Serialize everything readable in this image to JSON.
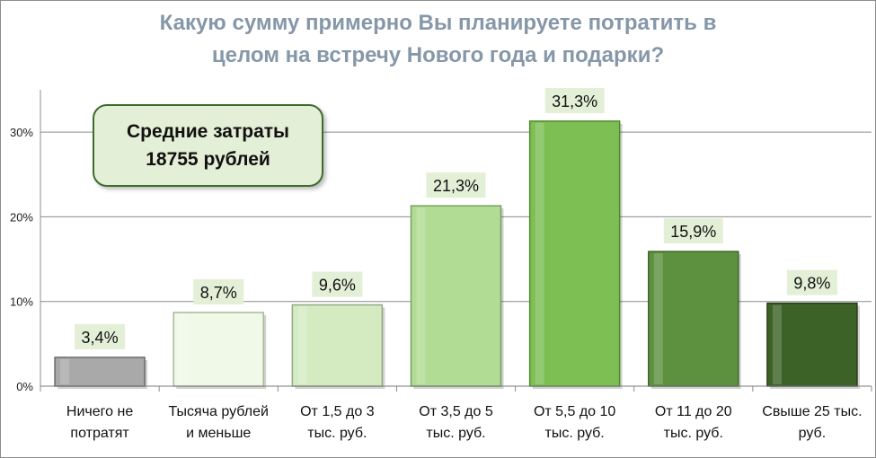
{
  "chart_data": {
    "type": "bar",
    "title_lines": [
      "Какую сумму примерно Вы планируете потратить в",
      "целом на встречу Нового года и подарки?"
    ],
    "categories": [
      [
        "Ничего не",
        "потратят"
      ],
      [
        "Тысяча рублей",
        "и меньше"
      ],
      [
        "От 1,5 до 3",
        "тыс. руб."
      ],
      [
        "От 3,5 до 5",
        "тыс. руб."
      ],
      [
        "От 5,5 до 10",
        "тыс. руб."
      ],
      [
        "От 11 до 20",
        "тыс. руб."
      ],
      [
        "Свыше 25 тыс.",
        "руб."
      ]
    ],
    "values": [
      3.4,
      8.7,
      9.6,
      21.3,
      31.3,
      15.9,
      9.8
    ],
    "value_labels": [
      "3,4%",
      "8,7%",
      "9,6%",
      "21,3%",
      "31,3%",
      "15,9%",
      "9,8%"
    ],
    "bar_colors": [
      "#a9a9a9",
      "#f0f9e8",
      "#d4ebc2",
      "#b0dc93",
      "#7dbf52",
      "#5d9140",
      "#3d6228"
    ],
    "bar_edge_colors": [
      "#6a6a6a",
      "#a8b89b",
      "#93a985",
      "#7aa063",
      "#4f8a2f",
      "#3b6627",
      "#25401a"
    ],
    "label_bg": "#e3efd6",
    "yticks": [
      0,
      10,
      20,
      30
    ],
    "ytick_labels": [
      "0%",
      "10%",
      "20%",
      "30%"
    ],
    "ylim": [
      0,
      35
    ],
    "grid": true,
    "xlabel": "",
    "ylabel": ""
  },
  "callout": {
    "line1": "Средние затраты",
    "line2": "18755 рублей"
  }
}
